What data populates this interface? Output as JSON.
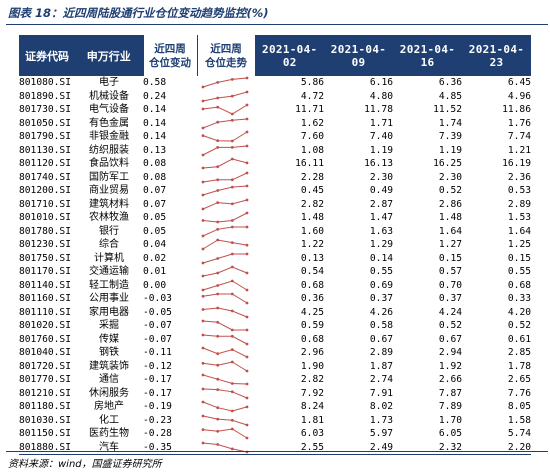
{
  "title": "图表 18：近四周陆股通行业仓位变动趋势监控(%)",
  "source": "资料来源：wind，国盛证券研究所",
  "colors": {
    "header_bg": "#1f3f73",
    "sparkline": "#c0504d"
  },
  "headers": {
    "code": "证券代码",
    "industry": "申万行业",
    "change": "近四周\n仓位变动",
    "trend": "近四周\n仓位走势",
    "dates": [
      "2021-04-02",
      "2021-04-09",
      "2021-04-16",
      "2021-04-23"
    ]
  },
  "rows": [
    {
      "code": "801080.SI",
      "industry": "电子",
      "change": "0.58",
      "values": [
        "5.86",
        "6.16",
        "6.36",
        "6.45"
      ]
    },
    {
      "code": "801890.SI",
      "industry": "机械设备",
      "change": "0.24",
      "values": [
        "4.72",
        "4.80",
        "4.85",
        "4.96"
      ]
    },
    {
      "code": "801730.SI",
      "industry": "电气设备",
      "change": "0.14",
      "values": [
        "11.71",
        "11.78",
        "11.52",
        "11.86"
      ]
    },
    {
      "code": "801050.SI",
      "industry": "有色金属",
      "change": "0.14",
      "values": [
        "1.62",
        "1.71",
        "1.74",
        "1.76"
      ]
    },
    {
      "code": "801790.SI",
      "industry": "非银金融",
      "change": "0.14",
      "values": [
        "7.60",
        "7.40",
        "7.39",
        "7.74"
      ]
    },
    {
      "code": "801130.SI",
      "industry": "纺织服装",
      "change": "0.13",
      "values": [
        "1.08",
        "1.19",
        "1.19",
        "1.21"
      ]
    },
    {
      "code": "801120.SI",
      "industry": "食品饮料",
      "change": "0.08",
      "values": [
        "16.11",
        "16.13",
        "16.25",
        "16.19"
      ]
    },
    {
      "code": "801740.SI",
      "industry": "国防军工",
      "change": "0.08",
      "values": [
        "2.28",
        "2.30",
        "2.30",
        "2.36"
      ]
    },
    {
      "code": "801200.SI",
      "industry": "商业贸易",
      "change": "0.07",
      "values": [
        "0.45",
        "0.49",
        "0.52",
        "0.53"
      ]
    },
    {
      "code": "801710.SI",
      "industry": "建筑材料",
      "change": "0.07",
      "values": [
        "2.82",
        "2.87",
        "2.86",
        "2.89"
      ]
    },
    {
      "code": "801010.SI",
      "industry": "农林牧渔",
      "change": "0.05",
      "values": [
        "1.48",
        "1.47",
        "1.48",
        "1.53"
      ]
    },
    {
      "code": "801780.SI",
      "industry": "银行",
      "change": "0.05",
      "values": [
        "1.60",
        "1.63",
        "1.64",
        "1.64"
      ]
    },
    {
      "code": "801230.SI",
      "industry": "综合",
      "change": "0.04",
      "values": [
        "1.22",
        "1.29",
        "1.27",
        "1.25"
      ]
    },
    {
      "code": "801750.SI",
      "industry": "计算机",
      "change": "0.02",
      "values": [
        "0.13",
        "0.14",
        "0.15",
        "0.15"
      ]
    },
    {
      "code": "801170.SI",
      "industry": "交通运输",
      "change": "0.01",
      "values": [
        "0.54",
        "0.55",
        "0.57",
        "0.55"
      ]
    },
    {
      "code": "801140.SI",
      "industry": "轻工制造",
      "change": "0.00",
      "values": [
        "0.68",
        "0.69",
        "0.70",
        "0.68"
      ]
    },
    {
      "code": "801160.SI",
      "industry": "公用事业",
      "change": "-0.03",
      "values": [
        "0.36",
        "0.37",
        "0.37",
        "0.33"
      ]
    },
    {
      "code": "801110.SI",
      "industry": "家用电器",
      "change": "-0.05",
      "values": [
        "4.25",
        "4.26",
        "4.24",
        "4.20"
      ]
    },
    {
      "code": "801020.SI",
      "industry": "采掘",
      "change": "-0.07",
      "values": [
        "0.59",
        "0.58",
        "0.52",
        "0.52"
      ]
    },
    {
      "code": "801760.SI",
      "industry": "传媒",
      "change": "-0.07",
      "values": [
        "0.68",
        "0.67",
        "0.67",
        "0.61"
      ]
    },
    {
      "code": "801040.SI",
      "industry": "钢铁",
      "change": "-0.11",
      "values": [
        "2.96",
        "2.89",
        "2.94",
        "2.85"
      ]
    },
    {
      "code": "801720.SI",
      "industry": "建筑装饰",
      "change": "-0.12",
      "values": [
        "1.90",
        "1.87",
        "1.92",
        "1.78"
      ]
    },
    {
      "code": "801770.SI",
      "industry": "通信",
      "change": "-0.17",
      "values": [
        "2.82",
        "2.74",
        "2.66",
        "2.65"
      ]
    },
    {
      "code": "801210.SI",
      "industry": "休闲服务",
      "change": "-0.17",
      "values": [
        "7.92",
        "7.91",
        "7.87",
        "7.76"
      ]
    },
    {
      "code": "801180.SI",
      "industry": "房地产",
      "change": "-0.19",
      "values": [
        "8.24",
        "8.02",
        "7.89",
        "8.05"
      ]
    },
    {
      "code": "801030.SI",
      "industry": "化工",
      "change": "-0.23",
      "values": [
        "1.81",
        "1.73",
        "1.70",
        "1.58"
      ]
    },
    {
      "code": "801150.SI",
      "industry": "医药生物",
      "change": "-0.28",
      "values": [
        "6.03",
        "5.97",
        "6.05",
        "5.74"
      ]
    },
    {
      "code": "801880.SI",
      "industry": "汽车",
      "change": "-0.35",
      "values": [
        "2.55",
        "2.49",
        "2.32",
        "2.20"
      ]
    }
  ]
}
